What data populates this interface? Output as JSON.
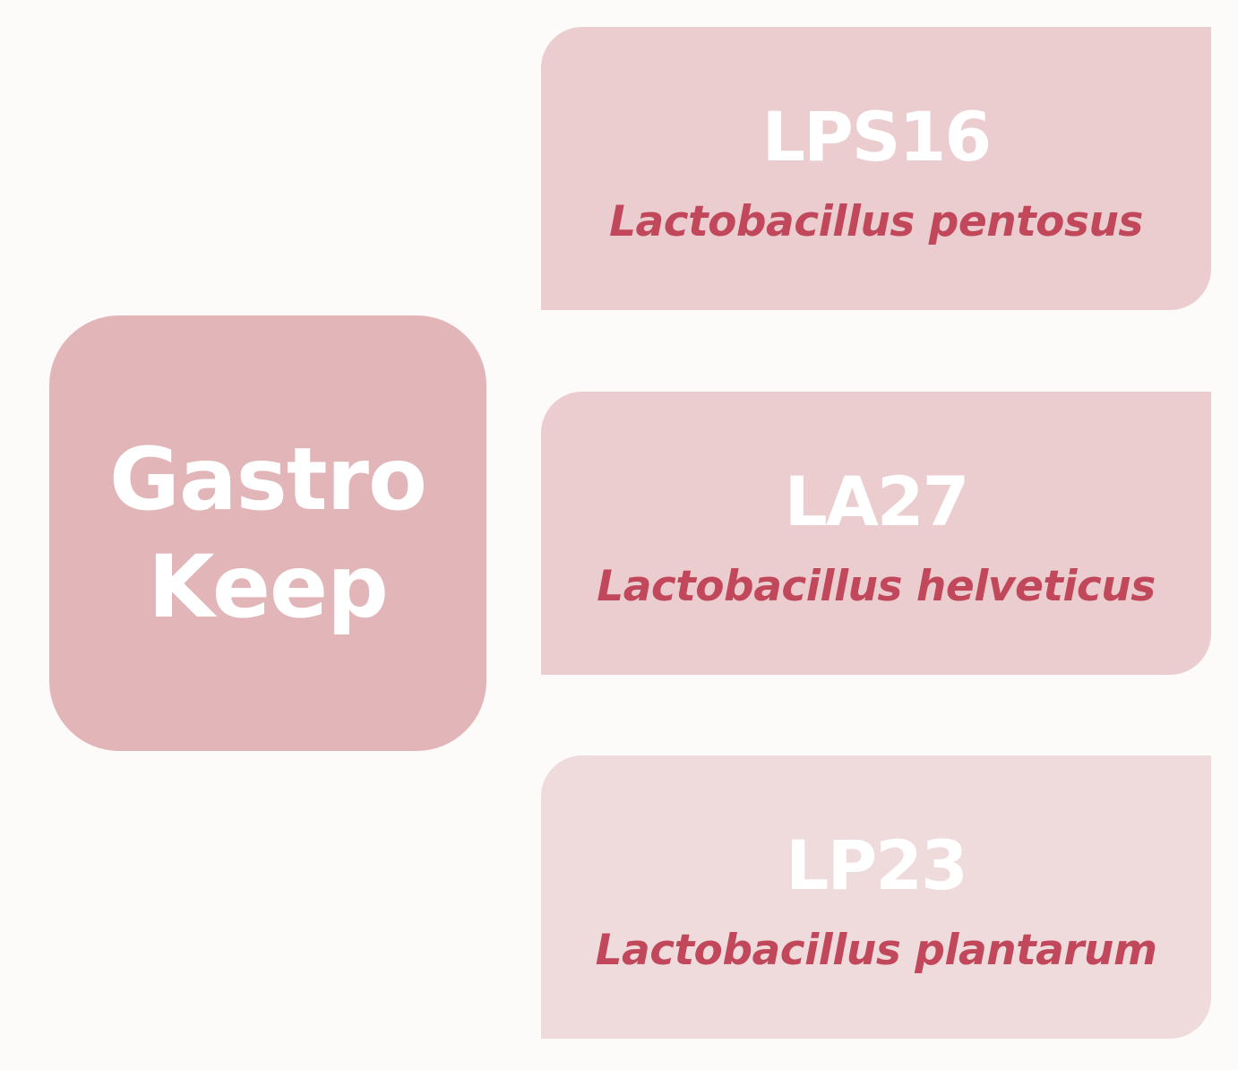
{
  "brand": {
    "line1": "Gastro",
    "line2": "Keep",
    "color": "#e2b5b9"
  },
  "strains": [
    {
      "code": "LPS16",
      "species": "Lactobacillus pentosus",
      "color": "#ebcdd0"
    },
    {
      "code": "LA27",
      "species": "Lactobacillus helveticus",
      "color": "#ebcdd0"
    },
    {
      "code": "LP23",
      "species": "Lactobacillus plantarum",
      "color": "#efdadc"
    }
  ],
  "colors": {
    "background": "#fdfafa",
    "species_text": "#c1475a",
    "code_text": "#ffffff"
  }
}
